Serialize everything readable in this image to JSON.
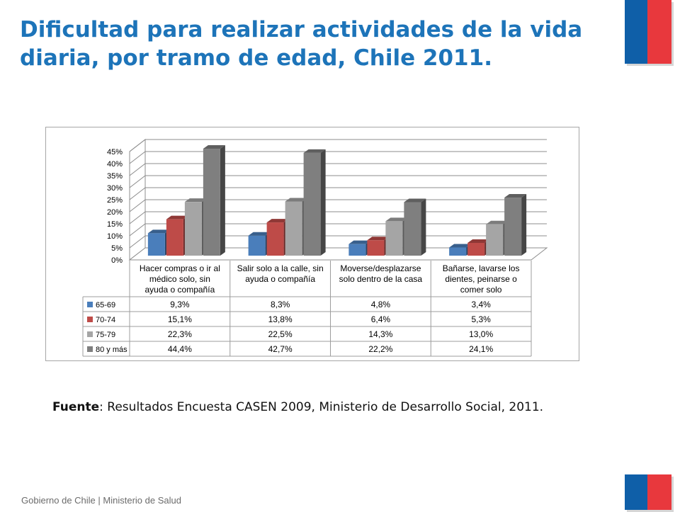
{
  "slide": {
    "title": "Dificultad para realizar actividades de la vida diaria, por tramo de edad, Chile 2011.",
    "source_label": "Fuente",
    "source_text": ": Resultados Encuesta CASEN 2009, Ministerio de Desarrollo Social, 2011.",
    "footer": "Gobierno de Chile | Ministerio de Salud"
  },
  "chart_data": {
    "type": "bar",
    "style": "3d-clustered-with-data-table",
    "categories": [
      [
        "Hacer compras o ir al",
        "médico solo, sin",
        "ayuda o compañía"
      ],
      [
        "Salir solo a la calle, sin",
        "ayuda o compañía"
      ],
      [
        "Moverse/desplazarse",
        "solo dentro de la casa"
      ],
      [
        "Bañarse, lavarse los",
        "dientes, peinarse o",
        "comer solo"
      ]
    ],
    "series": [
      {
        "name": "65-69",
        "color": "#4a7ebb",
        "values": [
          9.3,
          8.3,
          4.8,
          3.4
        ],
        "labels": [
          "9,3%",
          "8,3%",
          "4,8%",
          "3,4%"
        ]
      },
      {
        "name": "70-74",
        "color": "#be4b48",
        "values": [
          15.1,
          13.8,
          6.4,
          5.3
        ],
        "labels": [
          "15,1%",
          "13,8%",
          "6,4%",
          "5,3%"
        ]
      },
      {
        "name": "75-79",
        "color": "#a5a5a5",
        "values": [
          22.3,
          22.5,
          14.3,
          13.0
        ],
        "labels": [
          "22,3%",
          "22,5%",
          "14,3%",
          "13,0%"
        ]
      },
      {
        "name": "80 y más",
        "color": "#7f7f7f",
        "values": [
          44.4,
          42.7,
          22.2,
          24.1
        ],
        "labels": [
          "44,4%",
          "42,7%",
          "22,2%",
          "24,1%"
        ]
      }
    ],
    "y_ticks": [
      "0%",
      "5%",
      "10%",
      "15%",
      "20%",
      "25%",
      "30%",
      "35%",
      "40%",
      "45%"
    ],
    "ylim": [
      0,
      45
    ],
    "grid": true,
    "legend": "data-table"
  }
}
